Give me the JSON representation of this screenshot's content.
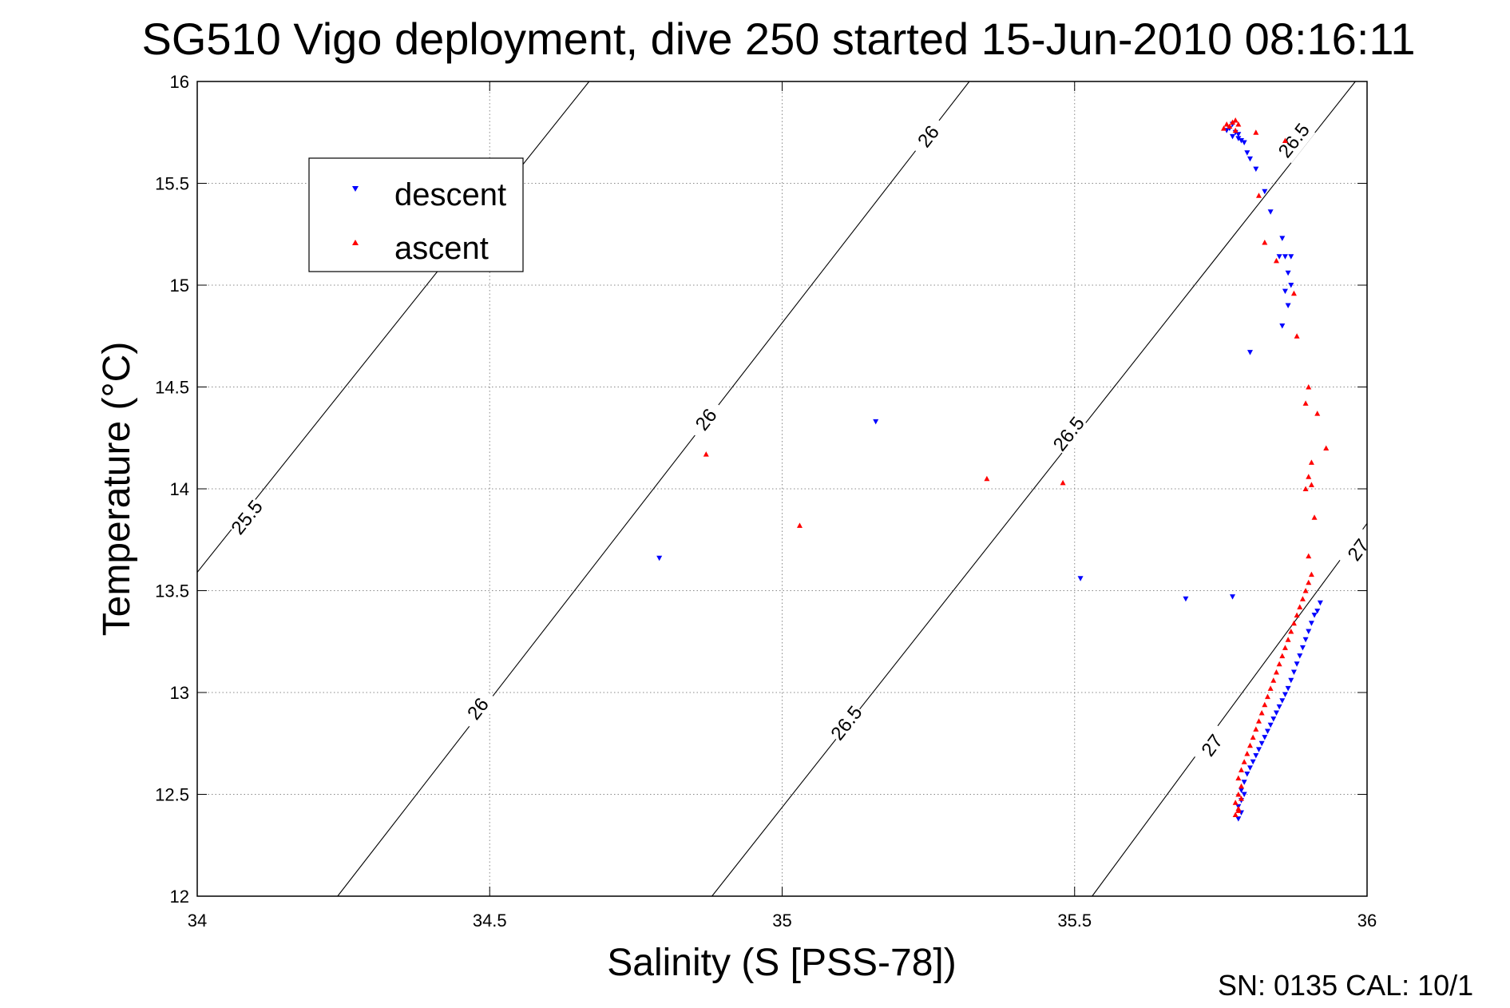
{
  "chart_data": {
    "type": "scatter",
    "title": "SG510 Vigo deployment, dive 250 started 15-Jun-2010 08:16:11",
    "xlabel": "Salinity (S [PSS-78])",
    "ylabel": "Temperature (°C)",
    "xlim": [
      34,
      36
    ],
    "ylim": [
      12,
      16
    ],
    "xticks": [
      "34",
      "34.5",
      "35",
      "35.5",
      "36"
    ],
    "yticks": [
      "12",
      "12.5",
      "13",
      "13.5",
      "14",
      "14.5",
      "15",
      "15.5",
      "16"
    ],
    "grid": true,
    "legend": {
      "position": "top-left"
    },
    "footer": "SN: 0135  CAL: 10/1",
    "contours": [
      {
        "label": "25.5",
        "points": [
          [
            34.0,
            13.59
          ],
          [
            34.67,
            16.0
          ]
        ],
        "labels_at": [
          [
            34.085,
            13.86
          ]
        ]
      },
      {
        "label": "26",
        "points": [
          [
            34.24,
            12.0
          ],
          [
            35.32,
            16.0
          ]
        ],
        "labels_at": [
          [
            34.48,
            12.92
          ],
          [
            34.87,
            14.34
          ],
          [
            35.25,
            15.73
          ]
        ]
      },
      {
        "label": "26.5",
        "points": [
          [
            34.88,
            12.0
          ],
          [
            35.98,
            16.0
          ]
        ],
        "labels_at": [
          [
            35.11,
            12.85
          ],
          [
            35.49,
            14.27
          ],
          [
            35.875,
            15.71
          ]
        ]
      },
      {
        "label": "27",
        "points": [
          [
            35.53,
            12.0
          ],
          [
            36.0,
            13.83
          ]
        ],
        "labels_at": [
          [
            35.735,
            12.74
          ],
          [
            35.985,
            13.7
          ]
        ]
      }
    ],
    "series": [
      {
        "name": "descent",
        "color": "#0000ff",
        "marker": "triangle-down",
        "points": [
          [
            35.77,
            15.79
          ],
          [
            35.765,
            15.77
          ],
          [
            35.775,
            15.75
          ],
          [
            35.77,
            15.73
          ],
          [
            35.78,
            15.72
          ],
          [
            35.785,
            15.71
          ],
          [
            35.79,
            15.7
          ],
          [
            35.78,
            15.74
          ],
          [
            35.76,
            15.76
          ],
          [
            35.795,
            15.65
          ],
          [
            35.8,
            15.62
          ],
          [
            35.81,
            15.57
          ],
          [
            35.825,
            15.46
          ],
          [
            35.835,
            15.36
          ],
          [
            35.855,
            15.23
          ],
          [
            35.85,
            15.14
          ],
          [
            35.86,
            15.14
          ],
          [
            35.87,
            15.14
          ],
          [
            35.865,
            15.06
          ],
          [
            35.87,
            15.0
          ],
          [
            35.86,
            14.97
          ],
          [
            35.865,
            14.9
          ],
          [
            35.855,
            14.8
          ],
          [
            35.8,
            14.67
          ],
          [
            35.16,
            14.33
          ],
          [
            34.79,
            13.66
          ],
          [
            35.51,
            13.56
          ],
          [
            35.69,
            13.46
          ],
          [
            35.77,
            13.47
          ],
          [
            35.92,
            13.44
          ],
          [
            35.915,
            13.4
          ],
          [
            35.91,
            13.38
          ],
          [
            35.905,
            13.34
          ],
          [
            35.9,
            13.3
          ],
          [
            35.895,
            13.26
          ],
          [
            35.89,
            13.22
          ],
          [
            35.885,
            13.18
          ],
          [
            35.88,
            13.14
          ],
          [
            35.875,
            13.1
          ],
          [
            35.87,
            13.06
          ],
          [
            35.865,
            13.02
          ],
          [
            35.86,
            12.99
          ],
          [
            35.855,
            12.96
          ],
          [
            35.85,
            12.93
          ],
          [
            35.845,
            12.9
          ],
          [
            35.84,
            12.87
          ],
          [
            35.835,
            12.84
          ],
          [
            35.83,
            12.81
          ],
          [
            35.825,
            12.78
          ],
          [
            35.82,
            12.75
          ],
          [
            35.815,
            12.72
          ],
          [
            35.81,
            12.69
          ],
          [
            35.805,
            12.66
          ],
          [
            35.8,
            12.63
          ],
          [
            35.795,
            12.6
          ],
          [
            35.79,
            12.56
          ],
          [
            35.785,
            12.52
          ],
          [
            35.79,
            12.5
          ],
          [
            35.785,
            12.47
          ],
          [
            35.78,
            12.44
          ],
          [
            35.785,
            12.41
          ],
          [
            35.78,
            12.38
          ]
        ]
      },
      {
        "name": "ascent",
        "color": "#ff0000",
        "marker": "triangle-up",
        "points": [
          [
            35.76,
            15.79
          ],
          [
            35.77,
            15.8
          ],
          [
            35.775,
            15.81
          ],
          [
            35.765,
            15.78
          ],
          [
            35.755,
            15.77
          ],
          [
            35.775,
            15.76
          ],
          [
            35.78,
            15.79
          ],
          [
            35.81,
            15.75
          ],
          [
            35.86,
            15.71
          ],
          [
            35.815,
            15.44
          ],
          [
            35.825,
            15.21
          ],
          [
            35.845,
            15.12
          ],
          [
            35.875,
            14.96
          ],
          [
            35.88,
            14.75
          ],
          [
            35.9,
            14.5
          ],
          [
            35.895,
            14.42
          ],
          [
            35.915,
            14.37
          ],
          [
            35.93,
            14.2
          ],
          [
            35.905,
            14.13
          ],
          [
            35.9,
            14.06
          ],
          [
            35.905,
            14.02
          ],
          [
            35.895,
            14.0
          ],
          [
            35.91,
            13.86
          ],
          [
            35.9,
            13.67
          ],
          [
            35.905,
            13.58
          ],
          [
            35.9,
            13.54
          ],
          [
            35.895,
            13.5
          ],
          [
            35.89,
            13.46
          ],
          [
            34.87,
            14.17
          ],
          [
            35.35,
            14.05
          ],
          [
            35.48,
            14.03
          ],
          [
            35.03,
            13.82
          ],
          [
            35.885,
            13.42
          ],
          [
            35.88,
            13.38
          ],
          [
            35.875,
            13.34
          ],
          [
            35.87,
            13.3
          ],
          [
            35.865,
            13.26
          ],
          [
            35.86,
            13.22
          ],
          [
            35.855,
            13.18
          ],
          [
            35.85,
            13.14
          ],
          [
            35.845,
            13.1
          ],
          [
            35.84,
            13.06
          ],
          [
            35.835,
            13.02
          ],
          [
            35.83,
            12.98
          ],
          [
            35.825,
            12.94
          ],
          [
            35.82,
            12.9
          ],
          [
            35.815,
            12.86
          ],
          [
            35.81,
            12.82
          ],
          [
            35.805,
            12.78
          ],
          [
            35.8,
            12.74
          ],
          [
            35.795,
            12.7
          ],
          [
            35.79,
            12.66
          ],
          [
            35.785,
            12.62
          ],
          [
            35.78,
            12.58
          ],
          [
            35.785,
            12.54
          ],
          [
            35.78,
            12.5
          ],
          [
            35.775,
            12.46
          ],
          [
            35.78,
            12.43
          ],
          [
            35.775,
            12.4
          ],
          [
            35.78,
            12.42
          ],
          [
            35.785,
            12.48
          ]
        ]
      }
    ]
  }
}
